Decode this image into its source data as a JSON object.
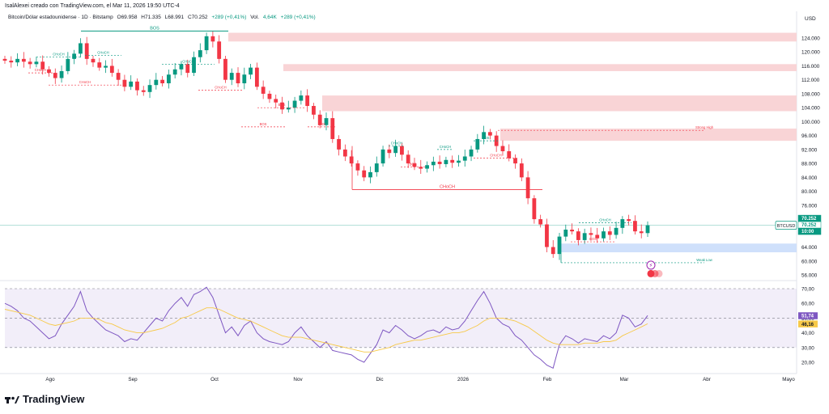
{
  "header": {
    "credit": "IsalAlexei creado con TradingView.com, el Mar 11, 2026 19:50 UTC-4",
    "currency": "USD"
  },
  "symbol_bar": {
    "name": "Bitcoin/Dólar estadounidense · 1D · Bitstamp",
    "open": "O69.958",
    "high": "H71.335",
    "low": "L68.991",
    "close": "C70.252",
    "change": "+289 (+0,41%)",
    "volume_label": "Vol.",
    "volume": "4,64K",
    "volume_change": "+289 (+0,41%)"
  },
  "footer": {
    "brand": "TradingView"
  },
  "colors": {
    "up": "#089981",
    "down": "#f23645",
    "rsi": "#7e57c2",
    "rsi_ma": "#f7c948",
    "supply": "#f9d4d6",
    "demand": "#cfe0fb"
  },
  "chart_data": [
    {
      "type": "candlestick",
      "title": "Bitcoin/Dólar estadounidense · 1D · Bitstamp",
      "ylabel": "USD",
      "ylim": [
        53000,
        128000
      ],
      "y_ticks": [
        "124.000",
        "120.000",
        "116.000",
        "112.000",
        "108.000",
        "104.000",
        "100.000",
        "96.000",
        "92.000",
        "88.000",
        "84.000",
        "80.000",
        "76.000",
        "64.000",
        "60.000",
        "56.000"
      ],
      "x_ticks": [
        "Ago",
        "Sep",
        "Oct",
        "Nov",
        "Dic",
        "2026",
        "Feb",
        "Mar",
        "Abr",
        "Mayo"
      ],
      "close_path": [
        117500,
        117000,
        118000,
        117200,
        116500,
        117200,
        115000,
        114000,
        112500,
        114500,
        118000,
        119500,
        122500,
        118000,
        117000,
        115500,
        116000,
        114000,
        112000,
        110000,
        111500,
        109000,
        108500,
        110500,
        112000,
        111000,
        113500,
        115000,
        116500,
        114000,
        118500,
        120500,
        124500,
        123000,
        118000,
        112000,
        114000,
        111000,
        113500,
        115500,
        110000,
        108000,
        106500,
        105500,
        103500,
        104000,
        106000,
        107500,
        104500,
        102000,
        99000,
        101000,
        95000,
        92000,
        90000,
        88000,
        86000,
        84000,
        85500,
        88000,
        92000,
        91000,
        93000,
        90500,
        88000,
        87000,
        86500,
        87500,
        88500,
        87800,
        89000,
        88200,
        88800,
        90000,
        92000,
        95000,
        97000,
        96000,
        93000,
        91500,
        89500,
        88000,
        84000,
        78000,
        72000,
        70500,
        64000,
        62000,
        67000,
        69000,
        68500,
        66000,
        68000,
        67500,
        66500,
        68500,
        67500,
        69500,
        72000,
        71500,
        68500,
        68000,
        70252
      ],
      "annotations": [
        "BOS",
        "CHoCH",
        "BOS",
        "CHoCH",
        "CHoCH",
        "CHoCH",
        "CHoCH",
        "CHoCH",
        "BOS",
        "BOS",
        "BOS",
        "CHoCH",
        "CHoCH",
        "CHoCH",
        "CHoCH",
        "CHoCH",
        "BOS",
        "BOS",
        "Strong High",
        "CHoCH",
        "CHoCH",
        "BOS",
        "Weak Low"
      ],
      "supply_zones": [
        [
          123000,
          125500
        ],
        [
          114500,
          116500
        ],
        [
          103000,
          107500
        ],
        [
          94500,
          98000
        ]
      ],
      "demand_zones": [
        [
          62500,
          65000
        ]
      ],
      "price_labels": [
        "70.252",
        "70.252",
        "10:00"
      ],
      "symbol_tag": "BTCUSD"
    },
    {
      "type": "line",
      "title": "RSI",
      "ylim": [
        13,
        74
      ],
      "y_ticks": [
        "70,00",
        "60,00",
        "50,00",
        "40,00",
        "30,00",
        "20,00"
      ],
      "series": [
        {
          "name": "RSI",
          "values": [
            60,
            58,
            55,
            50,
            48,
            44,
            40,
            36,
            38,
            46,
            52,
            58,
            68,
            55,
            50,
            46,
            42,
            40,
            38,
            34,
            36,
            35,
            40,
            45,
            50,
            48,
            55,
            60,
            64,
            58,
            66,
            68,
            71,
            64,
            52,
            40,
            44,
            38,
            45,
            48,
            40,
            36,
            34,
            33,
            32,
            34,
            40,
            44,
            38,
            34,
            30,
            34,
            28,
            27,
            26,
            25,
            22,
            20,
            26,
            32,
            42,
            40,
            45,
            42,
            38,
            36,
            38,
            41,
            42,
            40,
            44,
            42,
            43,
            48,
            55,
            62,
            68,
            60,
            50,
            46,
            44,
            38,
            35,
            30,
            25,
            22,
            18,
            16,
            32,
            38,
            36,
            33,
            36,
            35,
            34,
            38,
            36,
            40,
            52,
            50,
            44,
            46,
            51.74
          ]
        },
        {
          "name": "RSI MA",
          "values": [
            56,
            55,
            54,
            53,
            52,
            50,
            48,
            46,
            45,
            46,
            47,
            48,
            50,
            50,
            50,
            49,
            47,
            46,
            44,
            42,
            41,
            40,
            40,
            41,
            42,
            43,
            45,
            47,
            50,
            51,
            53,
            55,
            57,
            57,
            56,
            54,
            52,
            50,
            49,
            48,
            46,
            44,
            42,
            40,
            38,
            37,
            37,
            37,
            36,
            35,
            34,
            33,
            32,
            31,
            30,
            29,
            28,
            27,
            27,
            28,
            29,
            30,
            32,
            33,
            34,
            35,
            35,
            36,
            37,
            38,
            39,
            40,
            40,
            41,
            43,
            45,
            48,
            50,
            50,
            50,
            49,
            48,
            46,
            44,
            41,
            38,
            35,
            33,
            32,
            32,
            32,
            32,
            33,
            33,
            33,
            34,
            34,
            35,
            38,
            40,
            42,
            44,
            46.16
          ]
        }
      ],
      "value_labels": [
        "51,74",
        "46,16"
      ],
      "levels": [
        70,
        50,
        30
      ]
    }
  ]
}
